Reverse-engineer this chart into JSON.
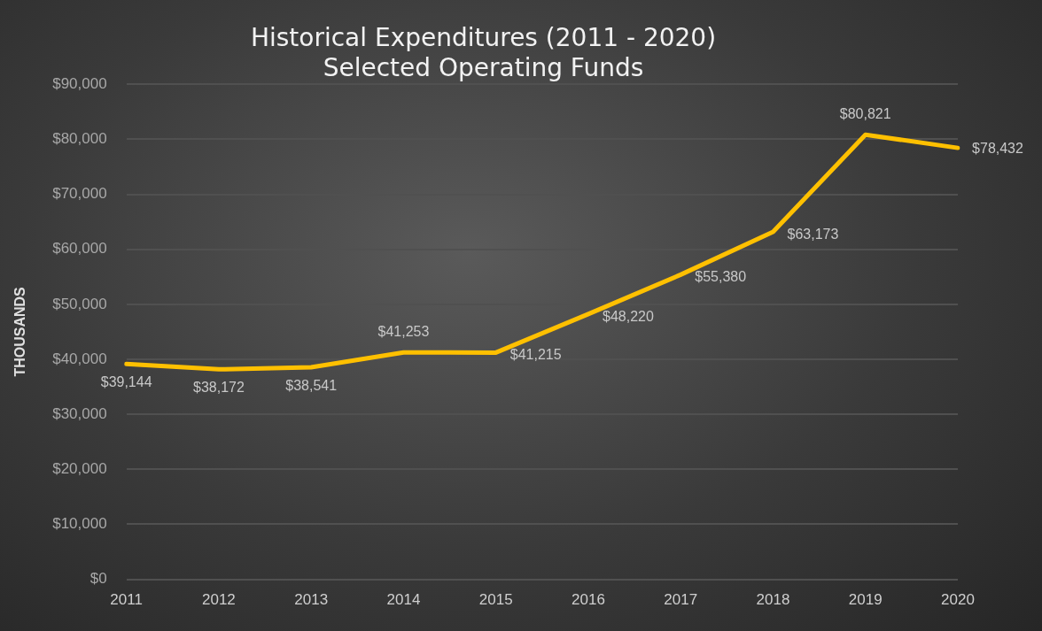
{
  "chart_data": {
    "type": "line",
    "title": [
      "Historical Expenditures (2011 - 2020)",
      "Selected Operating Funds"
    ],
    "ylabel": "THOUSANDS",
    "categories": [
      "2011",
      "2012",
      "2013",
      "2014",
      "2015",
      "2016",
      "2017",
      "2018",
      "2019",
      "2020"
    ],
    "series": [
      {
        "color": "#ffc000",
        "values": [
          39144,
          38172,
          38541,
          41253,
          41215,
          48220,
          55380,
          63173,
          80821,
          78432
        ],
        "value_labels": [
          "$39,144",
          "$38,172",
          "$38,541",
          "$41,253",
          "$41,215",
          "$48,220",
          "$55,380",
          "$63,173",
          "$80,821",
          "$78,432"
        ]
      }
    ],
    "ylim": [
      0,
      90000
    ],
    "yticks": [
      {
        "value": 0,
        "label": "$0"
      },
      {
        "value": 10000,
        "label": "$10,000"
      },
      {
        "value": 20000,
        "label": "$20,000"
      },
      {
        "value": 30000,
        "label": "$30,000"
      },
      {
        "value": 40000,
        "label": "$40,000"
      },
      {
        "value": 50000,
        "label": "$50,000"
      },
      {
        "value": 60000,
        "label": "$60,000"
      },
      {
        "value": 70000,
        "label": "$70,000"
      },
      {
        "value": 80000,
        "label": "$80,000"
      },
      {
        "value": 90000,
        "label": "$90,000"
      }
    ],
    "grid": "y",
    "legend": false,
    "marker": "none",
    "line_style": "solid"
  }
}
